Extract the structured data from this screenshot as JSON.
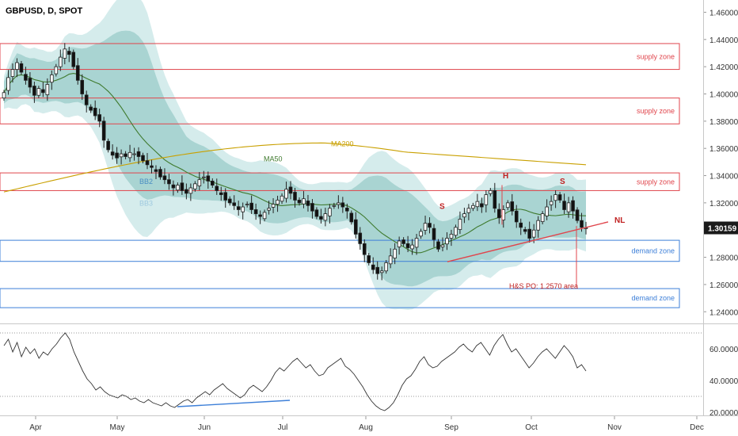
{
  "title": "GBPUSD, D, SPOT",
  "chart_data": [
    {
      "type": "candlestick",
      "title": "GBPUSD, D, SPOT",
      "ylim": [
        1.232,
        1.469
      ],
      "y_ticks": [
        1.46,
        1.44,
        1.42,
        1.4,
        1.38,
        1.36,
        1.34,
        1.32,
        1.3,
        1.28,
        1.26,
        1.24
      ],
      "y_tick_labels": [
        "1.46000",
        "1.44000",
        "1.42000",
        "1.40000",
        "1.38000",
        "1.36000",
        "1.34000",
        "1.32000",
        "1.30000",
        "1.28000",
        "1.26000",
        "1.24000"
      ],
      "last_price": 1.30159,
      "last_price_label": "1.30159",
      "x_months": [
        "Apr",
        "May",
        "Jun",
        "Jul",
        "Aug",
        "Sep",
        "Oct",
        "Nov",
        "Dec"
      ],
      "close_series": [
        1.401,
        1.412,
        1.418,
        1.423,
        1.416,
        1.41,
        1.405,
        1.399,
        1.404,
        1.401,
        1.407,
        1.414,
        1.42,
        1.427,
        1.433,
        1.429,
        1.42,
        1.41,
        1.4,
        1.392,
        1.388,
        1.384,
        1.38,
        1.366,
        1.359,
        1.355,
        1.353,
        1.356,
        1.354,
        1.357,
        1.356,
        1.354,
        1.351,
        1.348,
        1.346,
        1.343,
        1.339,
        1.337,
        1.334,
        1.331,
        1.333,
        1.329,
        1.327,
        1.331,
        1.334,
        1.337,
        1.339,
        1.336,
        1.333,
        1.329,
        1.326,
        1.322,
        1.32,
        1.318,
        1.315,
        1.317,
        1.319,
        1.315,
        1.312,
        1.31,
        1.313,
        1.316,
        1.319,
        1.322,
        1.325,
        1.33,
        1.327,
        1.322,
        1.32,
        1.323,
        1.318,
        1.314,
        1.31,
        1.308,
        1.312,
        1.316,
        1.318,
        1.32,
        1.317,
        1.314,
        1.306,
        1.297,
        1.29,
        1.282,
        1.276,
        1.271,
        1.268,
        1.27,
        1.276,
        1.281,
        1.286,
        1.292,
        1.29,
        1.287,
        1.289,
        1.294,
        1.299,
        1.305,
        1.302,
        1.293,
        1.286,
        1.289,
        1.294,
        1.297,
        1.302,
        1.308,
        1.312,
        1.316,
        1.318,
        1.321,
        1.317,
        1.326,
        1.329,
        1.316,
        1.309,
        1.315,
        1.32,
        1.314,
        1.306,
        1.302,
        1.299,
        1.294,
        1.3,
        1.307,
        1.312,
        1.317,
        1.321,
        1.326,
        1.322,
        1.315,
        1.32,
        1.314,
        1.307,
        1.302,
        1.3016
      ],
      "zones": [
        {
          "label": "supply zone",
          "top": 1.437,
          "bottom": 1.418,
          "color": "#e0454c"
        },
        {
          "label": "supply zone",
          "top": 1.397,
          "bottom": 1.378,
          "color": "#e0454c"
        },
        {
          "label": "supply zone",
          "top": 1.342,
          "bottom": 1.329,
          "color": "#e0454c"
        },
        {
          "label": "demand zone",
          "top": 1.2925,
          "bottom": 1.277,
          "color": "#3d7fd8"
        },
        {
          "label": "demand zone",
          "top": 1.257,
          "bottom": 1.243,
          "color": "#3d7fd8"
        }
      ],
      "indicators": [
        {
          "label": "MA200",
          "color": "#c9a000"
        },
        {
          "label": "MA50",
          "color": "#3f7a2e"
        },
        {
          "label": "BB2",
          "color": "#4a8ec2"
        },
        {
          "label": "BB3",
          "color": "#9ec9df"
        }
      ],
      "annotations": [
        {
          "label": "S",
          "x": 555,
          "price": 1.3155,
          "color": "#c02020"
        },
        {
          "label": "H",
          "x": 635,
          "price": 1.338,
          "color": "#c02020"
        },
        {
          "label": "S",
          "x": 707,
          "price": 1.334,
          "color": "#c02020"
        },
        {
          "label": "NL",
          "x": 776,
          "price": 1.3055,
          "color": "#c02020"
        },
        {
          "label": "H&S PO: 1.2570 area",
          "x": 643,
          "price": 1.257,
          "color": "#c02020"
        }
      ],
      "neckline": {
        "from": [
          565,
          1.2767
        ],
        "to": [
          768,
          1.306
        ],
        "color": "#e0454c"
      },
      "price_objective": 1.257
    },
    {
      "type": "line",
      "name": "oscillator",
      "ylim": [
        18.0,
        75.0
      ],
      "y_ticks": [
        60.0,
        40.0,
        20.0
      ],
      "y_tick_labels": [
        "60.0000",
        "40.0000",
        "20.0000"
      ],
      "levels": [
        70,
        30
      ],
      "values": [
        62,
        66,
        58,
        64,
        55,
        61,
        57,
        60,
        54,
        58,
        56,
        60,
        63,
        67,
        70,
        66,
        58,
        52,
        46,
        41,
        38,
        34,
        36,
        33,
        31,
        30,
        29,
        31,
        30,
        28,
        29,
        27,
        26,
        28,
        26,
        25,
        24,
        26,
        24,
        23,
        25,
        27,
        28,
        26,
        29,
        31,
        33,
        31,
        34,
        36,
        38,
        35,
        33,
        31,
        29,
        31,
        35,
        37,
        35,
        33,
        36,
        40,
        45,
        48,
        46,
        49,
        52,
        54,
        51,
        48,
        50,
        46,
        43,
        44,
        48,
        50,
        52,
        54,
        49,
        47,
        44,
        40,
        36,
        31,
        27,
        24,
        22,
        21,
        23,
        26,
        31,
        37,
        41,
        43,
        47,
        52,
        55,
        50,
        48,
        49,
        52,
        54,
        56,
        58,
        61,
        63,
        60,
        58,
        62,
        64,
        60,
        56,
        62,
        66,
        69,
        63,
        58,
        60,
        56,
        52,
        48,
        51,
        55,
        58,
        60,
        57,
        54,
        58,
        62,
        59,
        55,
        48,
        50,
        46
      ],
      "divergence_line": {
        "from": [
          224,
          23.5
        ],
        "to": [
          366,
          27.5
        ],
        "color": "#3d7fd8"
      }
    }
  ]
}
